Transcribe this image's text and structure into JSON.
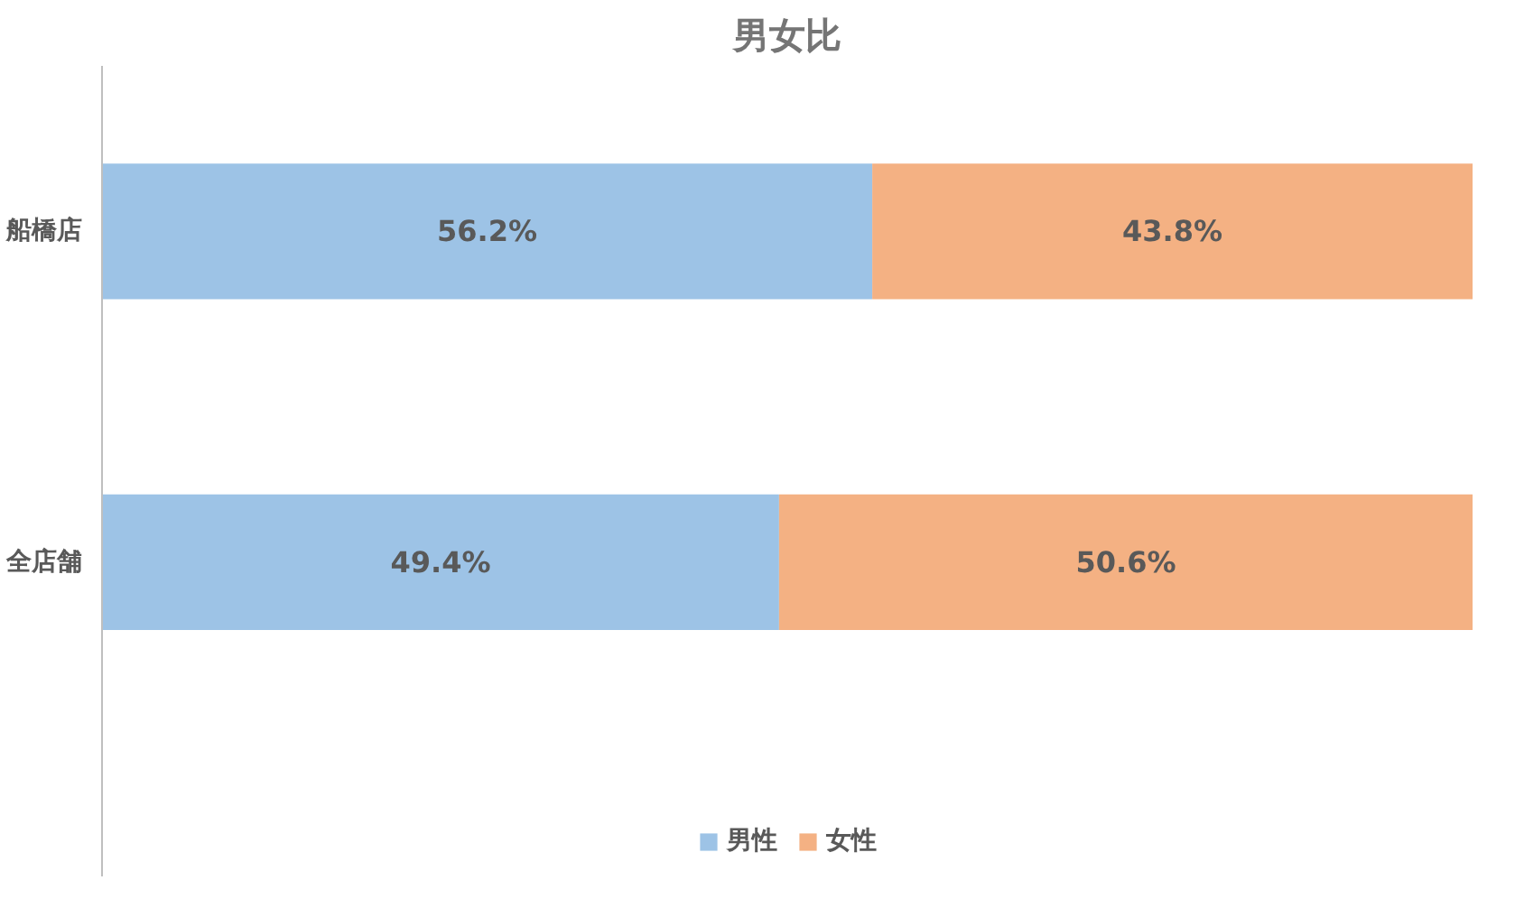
{
  "chart_data": {
    "type": "bar",
    "orientation": "horizontal",
    "stacked": true,
    "title": "男女比",
    "categories": [
      "船橋店",
      "全店舗"
    ],
    "series": [
      {
        "name": "男性",
        "color": "#9dc3e6",
        "values": [
          56.2,
          49.4
        ],
        "value_labels": [
          "56.2%",
          "49.4%"
        ]
      },
      {
        "name": "女性",
        "color": "#f4b183",
        "values": [
          43.8,
          50.6
        ],
        "value_labels": [
          "43.8%",
          "50.6%"
        ]
      }
    ],
    "legend": "bottom",
    "grid": false
  }
}
